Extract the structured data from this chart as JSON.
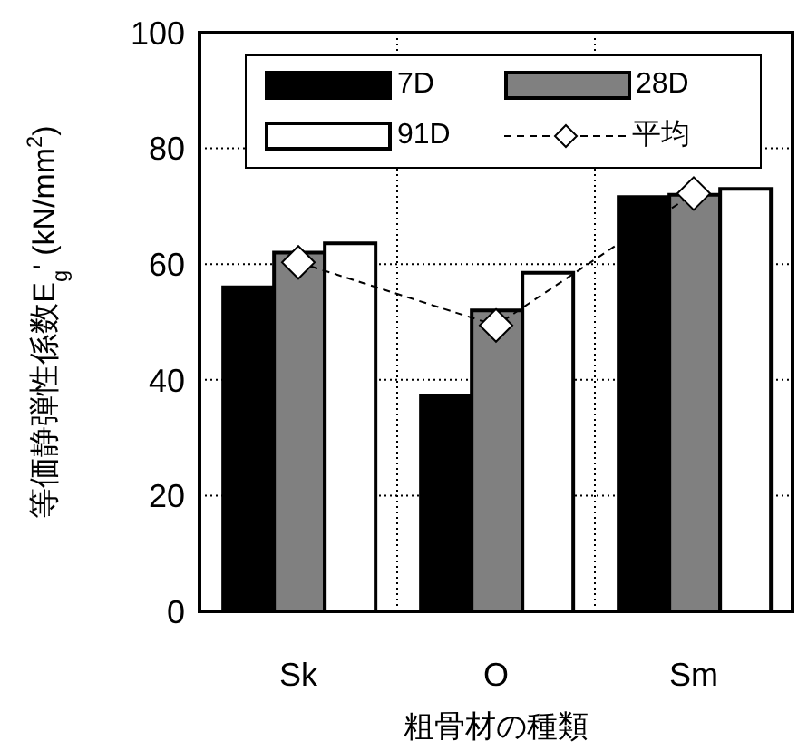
{
  "chart_data": {
    "type": "bar",
    "xlabel": "粗骨材の種類",
    "ylabel": "等価静弾性係数E$_{g}$' (kN/mm$^{2}$)",
    "categories": [
      "Sk",
      "O",
      "Sm"
    ],
    "series": [
      {
        "name": "7D",
        "color": "#000000",
        "values": [
          56,
          37.3,
          71.6
        ]
      },
      {
        "name": "28D",
        "color": "#808080",
        "values": [
          62,
          52,
          72
        ]
      },
      {
        "name": "91D",
        "color": "#ffffff",
        "values": [
          63.6,
          58.5,
          73
        ]
      },
      {
        "name": "平均",
        "type": "line",
        "color": "#000000",
        "marker": "diamond",
        "line_style": "dashed",
        "values": [
          60.3,
          49.4,
          72.2
        ]
      }
    ],
    "ylim": [
      0,
      100
    ],
    "yticks": [
      0,
      20,
      40,
      60,
      80,
      100
    ],
    "grid": true,
    "legend": "top"
  }
}
